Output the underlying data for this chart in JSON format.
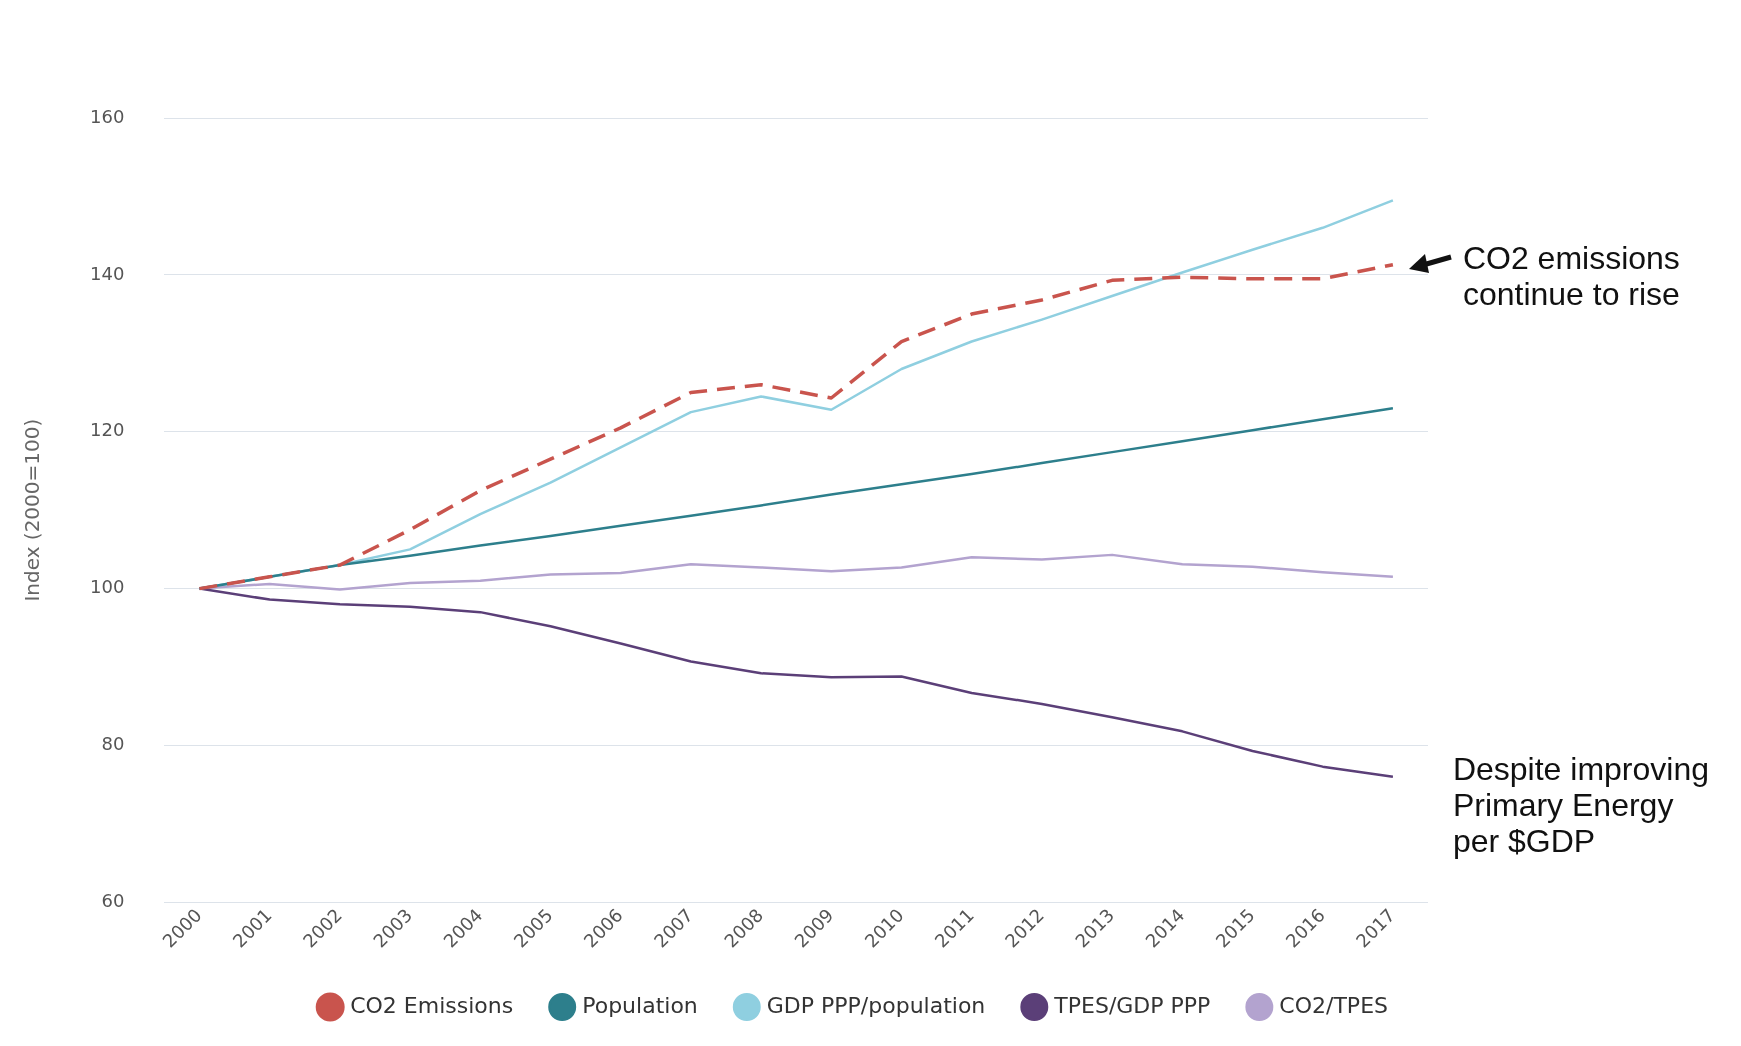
{
  "chart_data": {
    "type": "line",
    "ylabel": "Index (2000=100)",
    "categories": [
      "2000",
      "2001",
      "2002",
      "2003",
      "2004",
      "2005",
      "2006",
      "2007",
      "2008",
      "2009",
      "2010",
      "2011",
      "2012",
      "2013",
      "2014",
      "2015",
      "2016",
      "2017"
    ],
    "series": [
      {
        "name": "CO2 Emissions",
        "color": "#c9544d",
        "line_style": "dashed",
        "values": [
          100,
          101.5,
          103,
          107.5,
          112.5,
          116.5,
          120.5,
          125,
          126,
          124.3,
          131.5,
          135,
          136.8,
          139.3,
          139.7,
          139.5,
          139.5,
          141.3
        ]
      },
      {
        "name": "Population",
        "color": "#2d7f8c",
        "values": [
          100,
          101.5,
          103,
          104.2,
          105.5,
          106.7,
          108,
          109.3,
          110.6,
          112,
          113.3,
          114.6,
          116,
          117.4,
          118.8,
          120.2,
          121.6,
          123
        ]
      },
      {
        "name": "GDP PPP/population",
        "color": "#8fcfe0",
        "values": [
          100,
          101.5,
          103,
          105,
          109.5,
          113.5,
          118,
          122.5,
          124.5,
          122.8,
          128,
          131.5,
          134.3,
          137.3,
          140.3,
          143.2,
          146,
          149.5
        ]
      },
      {
        "name": "TPES/GDP PPP",
        "color": "#5b3f78",
        "values": [
          100,
          98.6,
          98,
          97.7,
          97,
          95.2,
          93,
          90.7,
          89.2,
          88.7,
          88.8,
          86.7,
          85.3,
          83.6,
          81.8,
          79.3,
          77.3,
          76
        ]
      },
      {
        "name": "CO2/TPES",
        "color": "#b3a3cf",
        "values": [
          100,
          100.6,
          99.9,
          100.7,
          101,
          101.8,
          102,
          103.1,
          102.7,
          102.2,
          102.7,
          104,
          103.7,
          104.3,
          103.1,
          102.8,
          102.1,
          101.5
        ]
      }
    ],
    "ylim": [
      60,
      160
    ],
    "yticks": [
      60,
      80,
      100,
      120,
      140,
      160
    ],
    "grid": "y",
    "legend": "bottom right",
    "marker": "none",
    "line_style": "solid",
    "annotations": [
      {
        "text": "CO2 emissions\ncontinue to rise",
        "x": "2017",
        "y": 141.3
      },
      {
        "text": "Despite improving\nPrimary Energy\nper $GDP",
        "x": "2017",
        "y": 76
      }
    ]
  }
}
